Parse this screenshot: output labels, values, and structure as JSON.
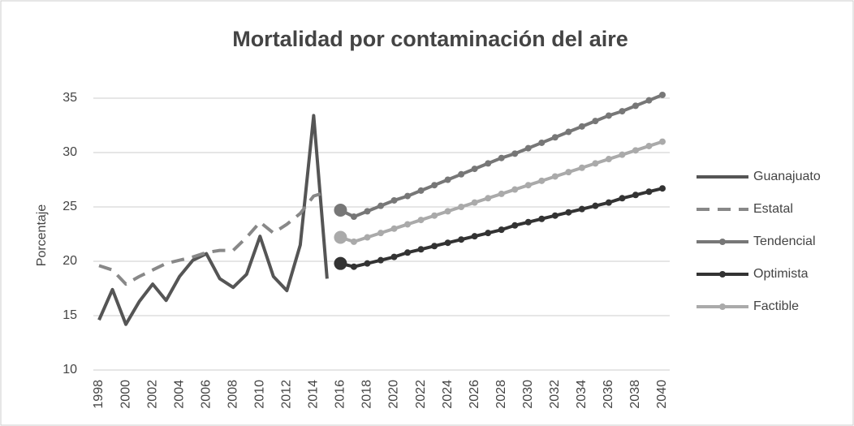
{
  "chart_data": {
    "type": "line",
    "title": "Mortalidad por contaminación del aire",
    "ylabel": "Porcentaje",
    "categories": [
      "1998",
      null,
      "2000",
      null,
      "2002",
      null,
      "2004",
      null,
      "2006",
      null,
      "2008",
      null,
      "2010",
      null,
      "2012",
      null,
      "2014",
      null,
      "2016",
      null,
      "2018",
      null,
      "2020",
      null,
      "2022",
      null,
      "2024",
      null,
      "2026",
      null,
      "2028",
      null,
      "2030",
      null,
      "2032",
      null,
      "2034",
      null,
      "2036",
      null,
      "2038",
      null,
      "2040"
    ],
    "ylim": [
      10,
      35
    ],
    "yticks": [
      10,
      15,
      20,
      25,
      30,
      35
    ],
    "grid": true,
    "legend": "right",
    "series": [
      {
        "name": "Guanajuato",
        "color": "#555555",
        "style": "solid",
        "marker": false,
        "values": [
          14.6,
          17.4,
          14.2,
          16.3,
          17.9,
          16.4,
          18.6,
          20.1,
          20.7,
          18.4,
          17.6,
          18.8,
          22.3,
          18.6,
          17.3,
          21.5,
          33.4,
          18.4,
          null,
          null,
          null,
          null,
          null,
          null,
          null,
          null,
          null,
          null,
          null,
          null,
          null,
          null,
          null,
          null,
          null,
          null,
          null,
          null,
          null,
          null,
          null,
          null,
          null
        ]
      },
      {
        "name": "Estatal",
        "color": "#888888",
        "style": "dashed",
        "marker": false,
        "values": [
          19.6,
          19.2,
          17.9,
          18.6,
          19.2,
          19.8,
          20.1,
          20.4,
          20.8,
          21.0,
          21.0,
          22.2,
          23.6,
          22.6,
          23.4,
          24.4,
          26.0,
          26.4,
          null,
          null,
          null,
          null,
          null,
          null,
          null,
          null,
          null,
          null,
          null,
          null,
          null,
          null,
          null,
          null,
          null,
          null,
          null,
          null,
          null,
          null,
          null,
          null,
          null
        ]
      },
      {
        "name": "Tendencial",
        "color": "#777777",
        "style": "solid",
        "marker": true,
        "values": [
          null,
          null,
          null,
          null,
          null,
          null,
          null,
          null,
          null,
          null,
          null,
          null,
          null,
          null,
          null,
          null,
          null,
          null,
          24.7,
          24.1,
          24.6,
          25.1,
          25.6,
          26.0,
          26.5,
          27.0,
          27.5,
          28.0,
          28.5,
          29.0,
          29.5,
          29.9,
          30.4,
          30.9,
          31.4,
          31.9,
          32.4,
          32.9,
          33.4,
          33.8,
          34.3,
          34.8,
          35.3
        ]
      },
      {
        "name": "Optimista",
        "color": "#333333",
        "style": "solid",
        "marker": true,
        "values": [
          null,
          null,
          null,
          null,
          null,
          null,
          null,
          null,
          null,
          null,
          null,
          null,
          null,
          null,
          null,
          null,
          null,
          null,
          19.8,
          19.5,
          19.8,
          20.1,
          20.4,
          20.8,
          21.1,
          21.4,
          21.7,
          22.0,
          22.3,
          22.6,
          22.9,
          23.3,
          23.6,
          23.9,
          24.2,
          24.5,
          24.8,
          25.1,
          25.4,
          25.8,
          26.1,
          26.4,
          26.7
        ]
      },
      {
        "name": "Factible",
        "color": "#aaaaaa",
        "style": "solid",
        "marker": true,
        "values": [
          null,
          null,
          null,
          null,
          null,
          null,
          null,
          null,
          null,
          null,
          null,
          null,
          null,
          null,
          null,
          null,
          null,
          null,
          22.2,
          21.8,
          22.2,
          22.6,
          23.0,
          23.4,
          23.8,
          24.2,
          24.6,
          25.0,
          25.4,
          25.8,
          26.2,
          26.6,
          27.0,
          27.4,
          27.8,
          28.2,
          28.6,
          29.0,
          29.4,
          29.8,
          30.2,
          30.6,
          31.0
        ]
      }
    ]
  }
}
